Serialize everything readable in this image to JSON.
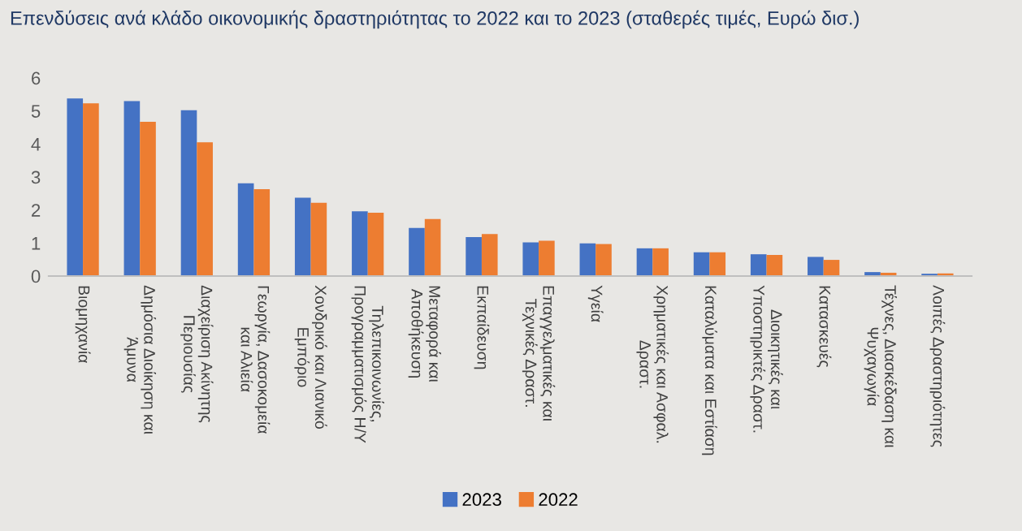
{
  "chart_data": {
    "type": "bar",
    "title": "Επενδύσεις ανά κλάδο οικονομικής δραστηριότητας το 2022 και το 2023 (σταθερές τιμές, Ευρώ δισ.)",
    "categories": [
      "Βιομηχανία",
      "Δημόσια Διοίκηση και Άμυνα",
      "Διαχείριση Ακίνητης Περιουσίας",
      "Γεωργία, Δασοκομεία και Αλιεία",
      "Χονδρικό και Λιανικό Εμπόριο",
      "Τηλεπικοινωνίες, Προγραμματισμός Η/Υ",
      "Μεταφορά και Αποθήκευση",
      "Εκπαίδευση",
      "Επαγγελματικές και Τεχνικές Δραστ.",
      "Υγεία",
      "Χρηματικές και Ασφαλ. Δραστ.",
      "Καταλύματα και Εστίαση",
      "Διοικητικές και Υποστηρικτές Δραστ.",
      "Κατασκευές",
      "Τέχνες, Διασκέδαση και Ψυχαγωγία",
      "Λοιπές Δραστηριότητες"
    ],
    "series": [
      {
        "name": "2023",
        "color": "#4472c4",
        "values": [
          5.38,
          5.3,
          5.02,
          2.81,
          2.37,
          1.96,
          1.46,
          1.18,
          1.02,
          0.99,
          0.84,
          0.72,
          0.66,
          0.58,
          0.12,
          0.07
        ]
      },
      {
        "name": "2022",
        "color": "#ed7d31",
        "values": [
          5.23,
          4.67,
          4.05,
          2.63,
          2.22,
          1.92,
          1.73,
          1.27,
          1.07,
          0.97,
          0.84,
          0.72,
          0.64,
          0.49,
          0.1,
          0.08
        ]
      }
    ],
    "ylim": [
      0,
      6
    ],
    "yticks": [
      0,
      1,
      2,
      3,
      4,
      5,
      6
    ],
    "grid": false,
    "legend": "bottom"
  }
}
